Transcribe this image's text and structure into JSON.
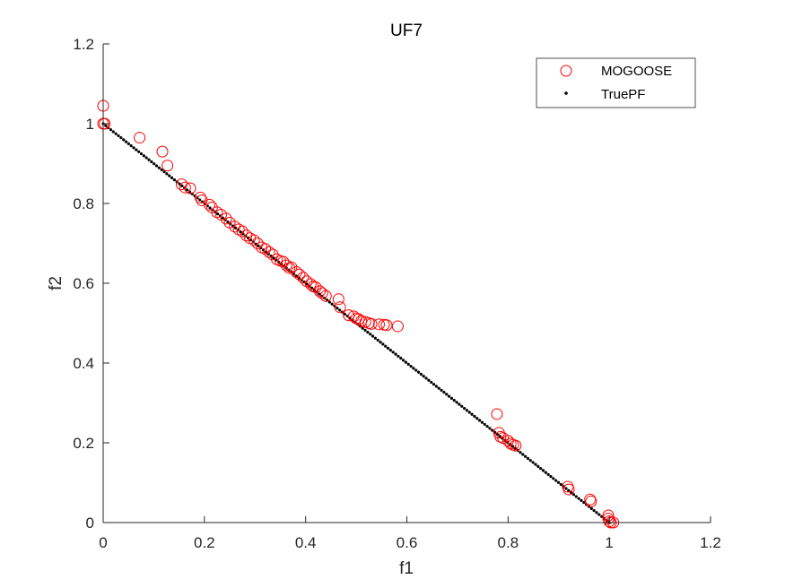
{
  "chart_data": {
    "type": "scatter",
    "title": "UF7",
    "xlabel": "f1",
    "ylabel": "f2",
    "xlim": [
      0,
      1.2
    ],
    "ylim": [
      0,
      1.2
    ],
    "xticks": [
      0,
      0.2,
      0.4,
      0.6,
      0.8,
      1,
      1.2
    ],
    "xtick_labels": [
      "0",
      "0.2",
      "0.4",
      "0.6",
      "0.8",
      "1",
      "1.2"
    ],
    "yticks": [
      0,
      0.2,
      0.4,
      0.6,
      0.8,
      1,
      1.2
    ],
    "ytick_labels": [
      "0",
      "0.2",
      "0.4",
      "0.6",
      "0.8",
      "1",
      "1.2"
    ],
    "grid": false,
    "legend_position": "top-right",
    "series": [
      {
        "name": "MOGOOSE",
        "marker": "open-circle",
        "color": "#ff0000",
        "points": [
          [
            0.0,
            1.045
          ],
          [
            0.0,
            1.0
          ],
          [
            0.003,
            1.0
          ],
          [
            0.072,
            0.965
          ],
          [
            0.117,
            0.93
          ],
          [
            0.127,
            0.895
          ],
          [
            0.155,
            0.848
          ],
          [
            0.162,
            0.84
          ],
          [
            0.172,
            0.838
          ],
          [
            0.192,
            0.815
          ],
          [
            0.195,
            0.808
          ],
          [
            0.21,
            0.797
          ],
          [
            0.215,
            0.79
          ],
          [
            0.225,
            0.778
          ],
          [
            0.233,
            0.772
          ],
          [
            0.243,
            0.762
          ],
          [
            0.25,
            0.752
          ],
          [
            0.26,
            0.742
          ],
          [
            0.268,
            0.735
          ],
          [
            0.275,
            0.73
          ],
          [
            0.283,
            0.72
          ],
          [
            0.29,
            0.713
          ],
          [
            0.298,
            0.708
          ],
          [
            0.305,
            0.7
          ],
          [
            0.313,
            0.69
          ],
          [
            0.32,
            0.686
          ],
          [
            0.328,
            0.678
          ],
          [
            0.335,
            0.672
          ],
          [
            0.343,
            0.66
          ],
          [
            0.35,
            0.656
          ],
          [
            0.356,
            0.654
          ],
          [
            0.362,
            0.645
          ],
          [
            0.368,
            0.638
          ],
          [
            0.372,
            0.64
          ],
          [
            0.382,
            0.628
          ],
          [
            0.388,
            0.622
          ],
          [
            0.395,
            0.614
          ],
          [
            0.402,
            0.605
          ],
          [
            0.41,
            0.598
          ],
          [
            0.415,
            0.592
          ],
          [
            0.42,
            0.59
          ],
          [
            0.428,
            0.58
          ],
          [
            0.433,
            0.575
          ],
          [
            0.44,
            0.568
          ],
          [
            0.465,
            0.56
          ],
          [
            0.468,
            0.54
          ],
          [
            0.485,
            0.52
          ],
          [
            0.495,
            0.517
          ],
          [
            0.5,
            0.512
          ],
          [
            0.505,
            0.51
          ],
          [
            0.51,
            0.505
          ],
          [
            0.518,
            0.503
          ],
          [
            0.525,
            0.5
          ],
          [
            0.53,
            0.498
          ],
          [
            0.545,
            0.497
          ],
          [
            0.555,
            0.496
          ],
          [
            0.56,
            0.495
          ],
          [
            0.582,
            0.492
          ],
          [
            0.778,
            0.272
          ],
          [
            0.782,
            0.225
          ],
          [
            0.785,
            0.215
          ],
          [
            0.79,
            0.212
          ],
          [
            0.8,
            0.205
          ],
          [
            0.805,
            0.198
          ],
          [
            0.81,
            0.195
          ],
          [
            0.815,
            0.193
          ],
          [
            0.918,
            0.09
          ],
          [
            0.92,
            0.083
          ],
          [
            0.962,
            0.058
          ],
          [
            0.964,
            0.053
          ],
          [
            0.998,
            0.018
          ],
          [
            0.998,
            0.01
          ],
          [
            1.0,
            0.003
          ],
          [
            1.003,
            0.0
          ],
          [
            1.008,
            0.0
          ]
        ]
      },
      {
        "name": "TruePF",
        "marker": "dot",
        "color": "#000000",
        "relation": "f2 = 1 - f1",
        "x_range": [
          0,
          1
        ],
        "count": 200
      }
    ]
  }
}
